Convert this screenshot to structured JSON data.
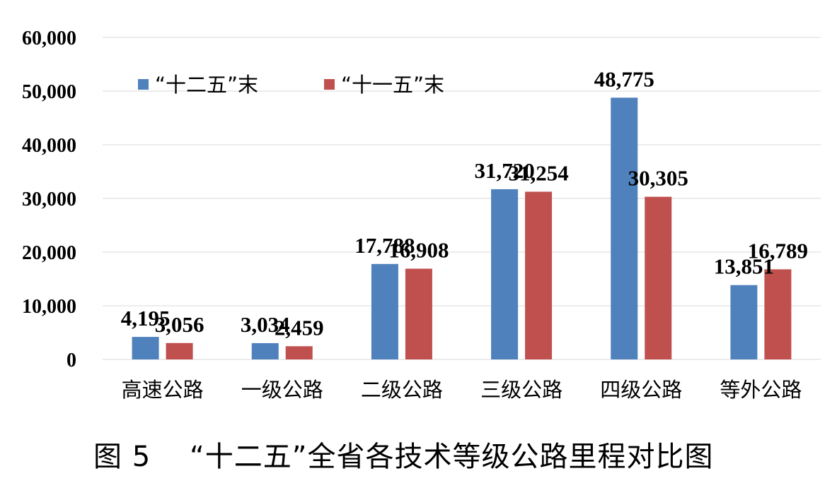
{
  "caption": "图 5    “十二五”全省各技术等级公路里程对比图",
  "chart_data": {
    "type": "bar",
    "categories": [
      "高速公路",
      "一级公路",
      "二级公路",
      "三级公路",
      "四级公路",
      "等外公路"
    ],
    "series": [
      {
        "name": "“十二五”末",
        "color": "#4f81bd",
        "values": [
          4195,
          3034,
          17788,
          31720,
          48775,
          13851
        ],
        "labels": [
          "4,195",
          "3,034",
          "17,788",
          "31,720",
          "48,775",
          "13,851"
        ]
      },
      {
        "name": "“十一五”末",
        "color": "#c0504d",
        "values": [
          3056,
          2459,
          16908,
          31254,
          30305,
          16789
        ],
        "labels": [
          "3,056",
          "2,459",
          "16,908",
          "31,254",
          "30,305",
          "16,789"
        ]
      }
    ],
    "ylim": [
      0,
      60000
    ],
    "yticks": [
      0,
      10000,
      20000,
      30000,
      40000,
      50000,
      60000
    ],
    "ytick_labels": [
      "0",
      "10,000",
      "20,000",
      "30,000",
      "40,000",
      "50,000",
      "60,000"
    ],
    "grid": true,
    "legend_position": "top-left",
    "title": "",
    "xlabel": "",
    "ylabel": ""
  }
}
